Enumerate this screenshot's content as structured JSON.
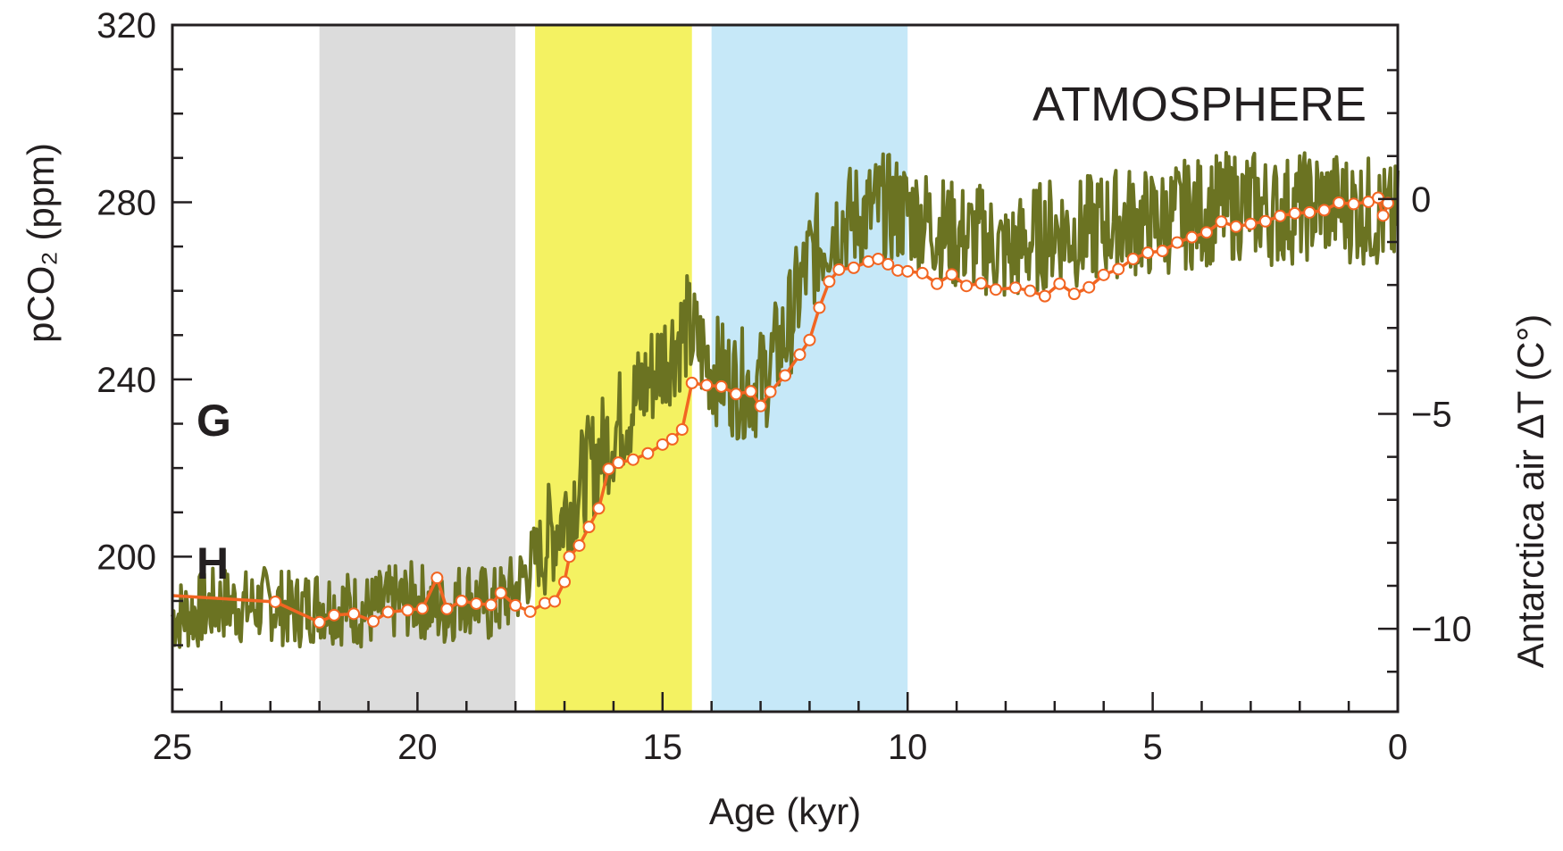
{
  "chart_data": {
    "type": "line",
    "title": "",
    "annotation": "ATMOSPHERE",
    "xlabel": "Age (kyr)",
    "ylabel_left": "pCO₂ (ppm)",
    "ylabel_right": "Antarctica air ΔT (C°)",
    "xlim": [
      25,
      0
    ],
    "ylim_left": [
      165,
      320
    ],
    "ylim_right": [
      -11.93,
      4.05
    ],
    "x_ticks": [
      "25",
      "20",
      "15",
      "10",
      "5",
      "0"
    ],
    "y_left_ticks": [
      "200",
      "240",
      "280",
      "320"
    ],
    "y_right_ticks": [
      "0",
      "−5",
      "−10"
    ],
    "grid": false,
    "shaded_intervals": [
      {
        "from": 22.0,
        "to": 18.0,
        "color": "#dcdcdc"
      },
      {
        "from": 17.6,
        "to": 14.4,
        "color": "#f4f262"
      },
      {
        "from": 14.0,
        "to": 10.0,
        "color": "#c6e8f8"
      }
    ],
    "series": [
      {
        "name": "G",
        "axis": "left",
        "color": "#f26522",
        "marker": "open-circle",
        "points": [
          [
            25.0,
            191.2
          ],
          [
            22.9,
            189.8
          ],
          [
            22.0,
            185.2
          ],
          [
            21.7,
            186.8
          ],
          [
            21.3,
            187.1
          ],
          [
            20.9,
            185.4
          ],
          [
            20.6,
            187.5
          ],
          [
            20.2,
            187.9
          ],
          [
            19.9,
            188.3
          ],
          [
            19.6,
            195.2
          ],
          [
            19.4,
            188.2
          ],
          [
            19.1,
            190.0
          ],
          [
            18.8,
            189.4
          ],
          [
            18.5,
            189.1
          ],
          [
            18.3,
            191.8
          ],
          [
            18.0,
            189.0
          ],
          [
            17.7,
            187.6
          ],
          [
            17.4,
            189.5
          ],
          [
            17.2,
            189.9
          ],
          [
            17.0,
            194.3
          ],
          [
            16.9,
            200.0
          ],
          [
            16.7,
            202.5
          ],
          [
            16.5,
            206.7
          ],
          [
            16.3,
            210.9
          ],
          [
            16.1,
            219.8
          ],
          [
            15.9,
            221.2
          ],
          [
            15.6,
            221.9
          ],
          [
            15.3,
            223.3
          ],
          [
            15.0,
            225.3
          ],
          [
            14.8,
            226.5
          ],
          [
            14.6,
            228.7
          ],
          [
            14.4,
            239.2
          ],
          [
            14.1,
            238.7
          ],
          [
            13.8,
            238.4
          ],
          [
            13.5,
            236.7
          ],
          [
            13.2,
            237.3
          ],
          [
            13.0,
            234.0
          ],
          [
            12.8,
            237.2
          ],
          [
            12.5,
            240.9
          ],
          [
            12.2,
            245.6
          ],
          [
            12.0,
            248.9
          ],
          [
            11.8,
            256.2
          ],
          [
            11.6,
            262.1
          ],
          [
            11.4,
            264.8
          ],
          [
            11.1,
            265.2
          ],
          [
            10.8,
            266.6
          ],
          [
            10.6,
            267.2
          ],
          [
            10.4,
            266.0
          ],
          [
            10.2,
            264.6
          ],
          [
            10.0,
            264.4
          ],
          [
            9.7,
            264.0
          ],
          [
            9.4,
            261.6
          ],
          [
            9.1,
            263.7
          ],
          [
            8.8,
            261.1
          ],
          [
            8.5,
            261.7
          ],
          [
            8.2,
            260.3
          ],
          [
            7.8,
            260.7
          ],
          [
            7.5,
            260.0
          ],
          [
            7.2,
            258.8
          ],
          [
            6.9,
            261.6
          ],
          [
            6.6,
            259.3
          ],
          [
            6.3,
            260.8
          ],
          [
            6.0,
            263.6
          ],
          [
            5.7,
            264.9
          ],
          [
            5.4,
            267.2
          ],
          [
            5.1,
            268.6
          ],
          [
            4.8,
            269.0
          ],
          [
            4.5,
            270.9
          ],
          [
            4.2,
            272.1
          ],
          [
            3.9,
            273.2
          ],
          [
            3.6,
            275.6
          ],
          [
            3.3,
            274.5
          ],
          [
            3.0,
            275.1
          ],
          [
            2.7,
            275.7
          ],
          [
            2.4,
            276.9
          ],
          [
            2.1,
            277.5
          ],
          [
            1.8,
            277.7
          ],
          [
            1.5,
            278.2
          ],
          [
            1.2,
            279.9
          ],
          [
            0.9,
            279.6
          ],
          [
            0.6,
            280.1
          ],
          [
            0.4,
            281.0
          ],
          [
            0.3,
            277.0
          ],
          [
            0.2,
            279.8
          ]
        ]
      },
      {
        "name": "H",
        "axis": "right",
        "color": "#6b7322",
        "marker": "none",
        "points": [
          [
            25.0,
            -9.7
          ],
          [
            24.5,
            -9.6
          ],
          [
            24.0,
            -9.4
          ],
          [
            23.5,
            -9.5
          ],
          [
            23.0,
            -9.4
          ],
          [
            22.5,
            -9.6
          ],
          [
            22.0,
            -9.4
          ],
          [
            21.5,
            -9.5
          ],
          [
            21.0,
            -9.6
          ],
          [
            20.5,
            -9.4
          ],
          [
            20.0,
            -9.3
          ],
          [
            19.5,
            -9.6
          ],
          [
            19.0,
            -9.2
          ],
          [
            18.5,
            -9.5
          ],
          [
            18.0,
            -9.1
          ],
          [
            17.5,
            -8.2
          ],
          [
            17.0,
            -7.3
          ],
          [
            16.5,
            -6.3
          ],
          [
            16.0,
            -5.4
          ],
          [
            15.5,
            -4.6
          ],
          [
            15.0,
            -3.7
          ],
          [
            14.5,
            -3.0
          ],
          [
            14.0,
            -3.9
          ],
          [
            13.5,
            -4.3
          ],
          [
            13.0,
            -4.3
          ],
          [
            12.5,
            -3.2
          ],
          [
            12.0,
            -1.4
          ],
          [
            11.5,
            -0.6
          ],
          [
            11.0,
            -0.4
          ],
          [
            10.5,
            -0.2
          ],
          [
            10.0,
            -0.3
          ],
          [
            9.5,
            -0.6
          ],
          [
            9.0,
            -0.9
          ],
          [
            8.5,
            -0.9
          ],
          [
            8.0,
            -1.3
          ],
          [
            7.5,
            -1.0
          ],
          [
            7.0,
            -0.7
          ],
          [
            6.5,
            -0.8
          ],
          [
            6.0,
            -0.6
          ],
          [
            5.5,
            -0.5
          ],
          [
            5.0,
            -0.6
          ],
          [
            4.5,
            -0.4
          ],
          [
            4.0,
            -0.3
          ],
          [
            3.5,
            -0.2
          ],
          [
            3.0,
            -0.1
          ],
          [
            2.5,
            -0.3
          ],
          [
            2.0,
            -0.2
          ],
          [
            1.5,
            -0.1
          ],
          [
            1.0,
            -0.2
          ],
          [
            0.5,
            -0.3
          ],
          [
            0.2,
            -0.5
          ]
        ]
      }
    ]
  }
}
